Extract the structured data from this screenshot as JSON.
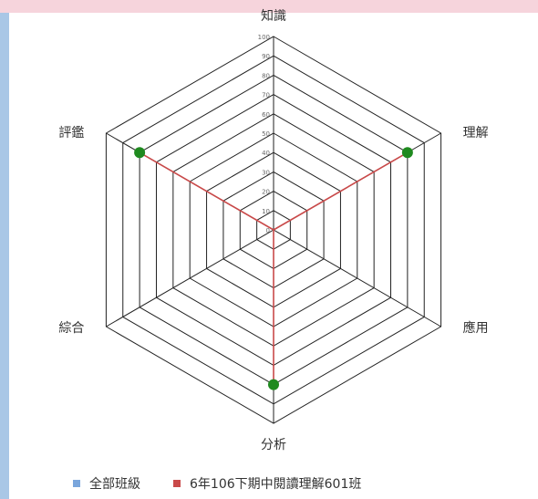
{
  "chart_data": {
    "type": "radar",
    "axes": [
      "知識",
      "理解",
      "應用",
      "分析",
      "綜合",
      "評鑑"
    ],
    "rmax": 100,
    "ticks": [
      0,
      10,
      20,
      30,
      40,
      50,
      60,
      70,
      80,
      90,
      100
    ],
    "series": [
      {
        "name": "全部班級",
        "color": "#7aa6dc",
        "values": [
          0,
          0,
          0,
          0,
          0,
          0
        ]
      },
      {
        "name": "6年106下期中閱讀理解601班",
        "color": "#c94a4a",
        "values": [
          0,
          80,
          0,
          80,
          0,
          80
        ]
      }
    ],
    "marker_color": "#1f8a1f",
    "legend_position": "bottom"
  }
}
